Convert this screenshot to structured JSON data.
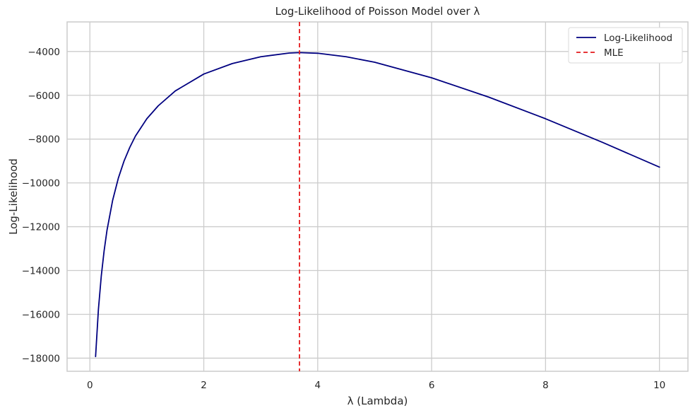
{
  "chart_data": {
    "type": "line",
    "title": "Log-Likelihood of Poisson Model over λ",
    "xlabel": "λ (Lambda)",
    "ylabel": "Log-Likelihood",
    "xlim": [
      -0.4,
      10.5
    ],
    "ylim": [
      -18600,
      -2650
    ],
    "xticks": [
      0,
      2,
      4,
      6,
      8,
      10
    ],
    "yticks": [
      -18000,
      -16000,
      -14000,
      -12000,
      -10000,
      -8000,
      -6000,
      -4000
    ],
    "xtick_labels": [
      "0",
      "2",
      "4",
      "6",
      "8",
      "10"
    ],
    "ytick_labels": [
      "−18000",
      "−16000",
      "−14000",
      "−12000",
      "−10000",
      "−8000",
      "−6000",
      "−4000"
    ],
    "grid": true,
    "legend_position": "top-right",
    "series": [
      {
        "name": "Log-Likelihood",
        "color": "#000080",
        "style": "solid",
        "x": [
          0.1,
          0.15,
          0.2,
          0.25,
          0.3,
          0.4,
          0.5,
          0.6,
          0.7,
          0.8,
          1.0,
          1.2,
          1.5,
          2.0,
          2.5,
          3.0,
          3.5,
          3.68,
          4.0,
          4.5,
          5.0,
          6.0,
          7.0,
          8.0,
          9.0,
          10.0
        ],
        "y": [
          -17930,
          -15770,
          -14250,
          -13100,
          -12170,
          -10790,
          -9780,
          -9000,
          -8380,
          -7860,
          -7070,
          -6480,
          -5800,
          -5030,
          -4550,
          -4240,
          -4070,
          -4050,
          -4080,
          -4240,
          -4490,
          -5200,
          -6080,
          -7070,
          -8150,
          -9280
        ]
      }
    ],
    "vlines": [
      {
        "name": "MLE",
        "x": 3.68,
        "color": "#e41a1c",
        "style": "dashed"
      }
    ]
  }
}
